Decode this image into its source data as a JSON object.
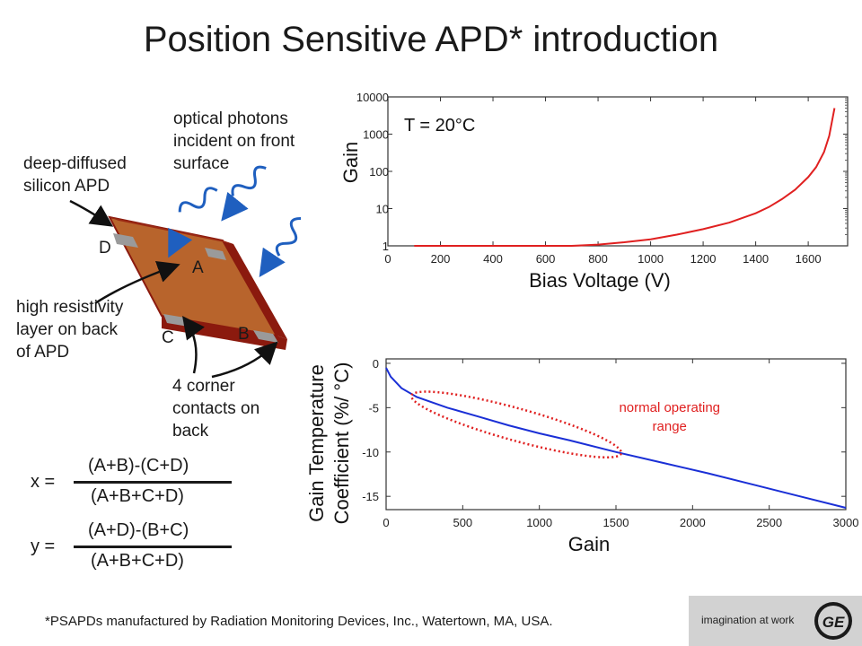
{
  "slide": {
    "title": "Position Sensitive APD* introduction",
    "footnote": "*PSAPDs manufactured by Radiation Monitoring Devices, Inc., Watertown, MA, USA."
  },
  "diagram": {
    "label_apd_line1": "deep-diffused",
    "label_apd_line2": "silicon APD",
    "label_photons_line1": "optical photons",
    "label_photons_line2": "incident on front",
    "label_photons_line3": "surface",
    "label_layer_line1": "high resistivity",
    "label_layer_line2": "layer on back",
    "label_layer_line3": "of APD",
    "label_contacts_line1": "4 corner",
    "label_contacts_line2": "contacts on",
    "label_contacts_line3": "back",
    "corner_a": "A",
    "corner_b": "B",
    "corner_c": "C",
    "corner_d": "D",
    "colors": {
      "top": "#b8642c",
      "edge": "#8b1a0e",
      "contact": "#9a9a9a",
      "wave": "#1f5fbf"
    }
  },
  "formulas": {
    "x_label": "x =",
    "x_numerator": "(A+B)-(C+D)",
    "x_denominator": "(A+B+C+D)",
    "y_label": "y =",
    "y_numerator": "(A+D)-(B+C)",
    "y_denominator": "(A+B+C+D)"
  },
  "logo": {
    "text": "imagination at work",
    "mark": "GE"
  },
  "chart_data": [
    {
      "type": "line",
      "title": "",
      "xlabel": "Bias Voltage  (V)",
      "ylabel": "Gain",
      "annotation": "T = 20°C",
      "yscale": "log",
      "xlim": [
        0,
        1750
      ],
      "ylim": [
        1,
        10000
      ],
      "xticks": [
        "0",
        "200",
        "400",
        "600",
        "800",
        "1000",
        "1200",
        "1400",
        "1600"
      ],
      "xtick_values": [
        0,
        200,
        400,
        600,
        800,
        1000,
        1200,
        1400,
        1600
      ],
      "yticks": [
        "1",
        "10",
        "100",
        "1000",
        "10000"
      ],
      "ytick_values": [
        1,
        10,
        100,
        1000,
        10000
      ],
      "grid": false,
      "series": [
        {
          "color": "#e02020",
          "x": [
            100,
            400,
            700,
            800,
            900,
            1000,
            1100,
            1200,
            1300,
            1400,
            1450,
            1500,
            1550,
            1600,
            1630,
            1660,
            1680,
            1700
          ],
          "y": [
            1,
            1,
            1,
            1.08,
            1.25,
            1.5,
            2,
            2.8,
            4.2,
            7.5,
            11,
            18,
            32,
            70,
            130,
            330,
            900,
            5000
          ]
        }
      ]
    },
    {
      "type": "line",
      "title": "",
      "xlabel": "Gain",
      "ylabel_line1": "Gain Temperature",
      "ylabel_line2": "Coefficient  (%/ °C)",
      "xlim": [
        0,
        3000
      ],
      "ylim": [
        -16.5,
        0.5
      ],
      "xticks": [
        "0",
        "500",
        "1000",
        "1500",
        "2000",
        "2500",
        "3000"
      ],
      "xtick_values": [
        0,
        500,
        1000,
        1500,
        2000,
        2500,
        3000
      ],
      "yticks": [
        "0",
        "-5",
        "-10",
        "-15"
      ],
      "ytick_values": [
        0,
        -5,
        -10,
        -15
      ],
      "grid": false,
      "annotation_line1": "normal operating",
      "annotation_line2": "range",
      "annotation_color": "#e02020",
      "ellipse_from": {
        "x": 200,
        "y": -3.8
      },
      "ellipse_to": {
        "x": 1500,
        "y": -10.0
      },
      "series": [
        {
          "color": "#1a2fd6",
          "x": [
            0,
            30,
            100,
            200,
            400,
            600,
            800,
            1000,
            1200,
            1500,
            1800,
            2100,
            2400,
            2700,
            3000
          ],
          "y": [
            -0.5,
            -1.5,
            -2.8,
            -3.8,
            -5.0,
            -6.0,
            -7.0,
            -7.9,
            -8.7,
            -10.0,
            -11.2,
            -12.4,
            -13.7,
            -15.0,
            -16.3
          ]
        }
      ]
    }
  ]
}
